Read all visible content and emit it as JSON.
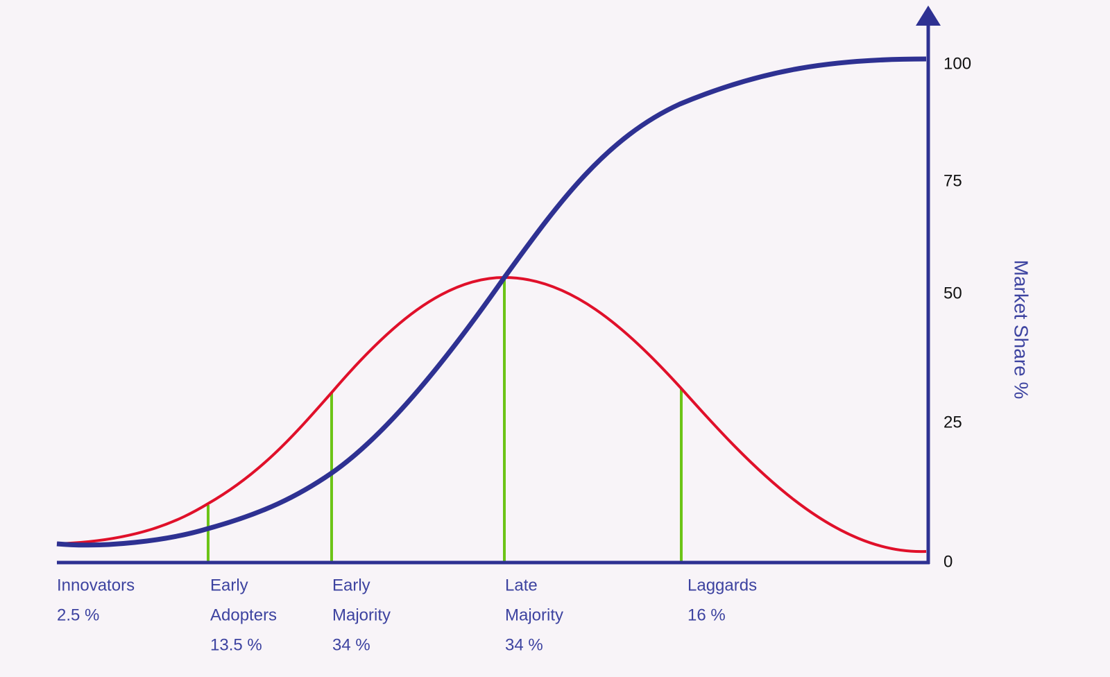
{
  "y_axis": {
    "label": "Market Share %",
    "ticks": [
      "100",
      "75",
      "50",
      "25",
      "0"
    ]
  },
  "segments": [
    {
      "lines": [
        "Innovators",
        "2.5 %"
      ]
    },
    {
      "lines": [
        "Early",
        "Adopters",
        "13.5 %"
      ]
    },
    {
      "lines": [
        "Early",
        "Majority",
        "34 %"
      ]
    },
    {
      "lines": [
        "Late",
        "Majority",
        "34 %"
      ]
    },
    {
      "lines": [
        "Laggards",
        "16 %"
      ]
    }
  ]
}
